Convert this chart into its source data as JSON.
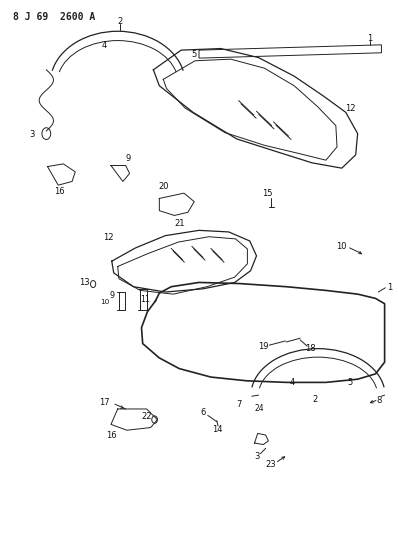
{
  "title_code": "8 J 69  2600 A",
  "bg_color": "#ffffff",
  "line_color": "#222222",
  "label_color": "#111111",
  "fig_width": 3.98,
  "fig_height": 5.33,
  "dpi": 100
}
